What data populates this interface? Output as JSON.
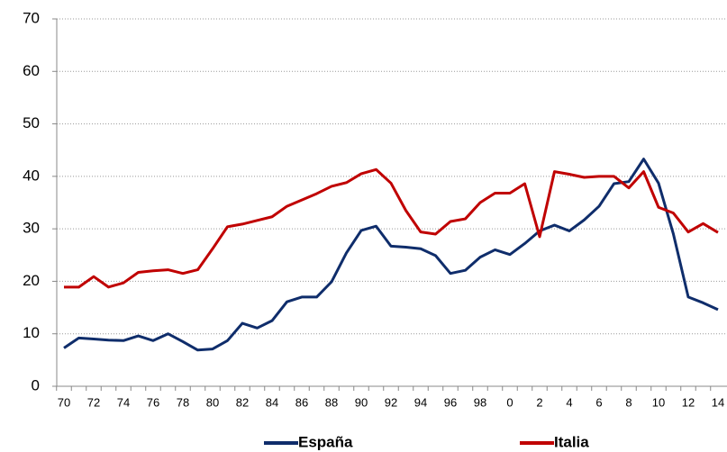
{
  "chart_data": {
    "type": "line",
    "categories": [
      "70",
      null,
      "72",
      null,
      "74",
      null,
      "76",
      null,
      "78",
      null,
      "80",
      null,
      "82",
      null,
      "84",
      null,
      "86",
      null,
      "88",
      null,
      "90",
      null,
      "92",
      null,
      "94",
      null,
      "96",
      null,
      "98",
      null,
      "0",
      null,
      "2",
      null,
      "4",
      null,
      "6",
      null,
      "8",
      null,
      "10",
      null,
      "12",
      null,
      "14"
    ],
    "series": [
      {
        "name": "España",
        "color": "#0f2d6b",
        "values": [
          7.3,
          9.2,
          9.0,
          8.8,
          8.7,
          9.6,
          8.7,
          10.0,
          8.5,
          6.9,
          7.1,
          8.7,
          12.0,
          11.1,
          12.5,
          16.1,
          17.0,
          17.0,
          19.9,
          25.4,
          29.7,
          30.5,
          26.7,
          26.5,
          26.2,
          24.9,
          21.5,
          22.1,
          24.6,
          26.0,
          25.1,
          27.2,
          29.6,
          30.7,
          29.6,
          31.7,
          34.3,
          38.6,
          39.0,
          43.3,
          38.7,
          29.0,
          17.0,
          15.9,
          14.6
        ]
      },
      {
        "name": "Italia",
        "color": "#c00000",
        "values": [
          18.9,
          18.9,
          20.9,
          18.9,
          19.7,
          21.7,
          22.0,
          22.2,
          21.5,
          22.2,
          26.2,
          30.4,
          30.9,
          31.6,
          32.3,
          34.3,
          35.5,
          36.7,
          38.1,
          38.8,
          40.5,
          41.3,
          38.7,
          33.5,
          29.4,
          29.0,
          31.4,
          31.9,
          35.0,
          36.8,
          36.8,
          38.6,
          28.5,
          40.9,
          40.4,
          39.8,
          40.0,
          40.0,
          37.8,
          40.9,
          34.1,
          33.0,
          29.4,
          31.0,
          29.3
        ]
      }
    ],
    "ylim": [
      0,
      70
    ],
    "yticks": [
      0,
      10,
      20,
      30,
      40,
      50,
      60,
      70
    ],
    "grid": true,
    "legend": "bottom"
  }
}
